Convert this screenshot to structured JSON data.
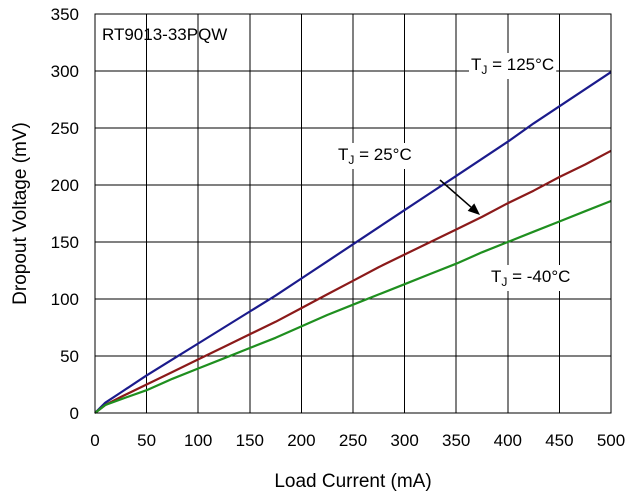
{
  "chart_data": {
    "type": "line",
    "title": "RT9013-33PQW",
    "xlabel": "Load Current (mA)",
    "ylabel": "Dropout Voltage (mV)",
    "xlim": [
      0,
      500
    ],
    "ylim": [
      0,
      350
    ],
    "xticks": [
      "0",
      "50",
      "100",
      "150",
      "200",
      "250",
      "300",
      "350",
      "400",
      "450",
      "500"
    ],
    "yticks": [
      "0",
      "50",
      "100",
      "150",
      "200",
      "250",
      "300",
      "350"
    ],
    "grid": true,
    "series": [
      {
        "name": "TJ = 125°C",
        "color": "#1b1b8c",
        "x": [
          0,
          10,
          25,
          50,
          75,
          100,
          125,
          150,
          175,
          200,
          225,
          250,
          275,
          300,
          325,
          350,
          375,
          400,
          425,
          450,
          475,
          500
        ],
        "y": [
          0,
          9,
          18,
          33,
          47,
          61,
          75,
          89,
          103,
          118,
          133,
          148,
          163,
          178,
          193,
          208,
          223,
          238,
          254,
          269,
          284,
          299
        ]
      },
      {
        "name": "TJ = 25°C",
        "color": "#8b1a1a",
        "x": [
          0,
          10,
          25,
          50,
          75,
          100,
          125,
          150,
          175,
          200,
          225,
          250,
          275,
          300,
          325,
          350,
          375,
          400,
          425,
          450,
          475,
          500
        ],
        "y": [
          0,
          7,
          14,
          25,
          36,
          47,
          58,
          69,
          80,
          92,
          104,
          116,
          128,
          139,
          150,
          161,
          172,
          184,
          195,
          207,
          218,
          230
        ]
      },
      {
        "name": "TJ = -40°C",
        "color": "#1f8f1f",
        "x": [
          0,
          10,
          25,
          50,
          75,
          100,
          125,
          150,
          175,
          200,
          225,
          250,
          275,
          300,
          325,
          350,
          375,
          400,
          425,
          450,
          475,
          500
        ],
        "y": [
          0,
          7,
          12,
          20,
          30,
          39,
          48,
          57,
          66,
          76,
          86,
          95,
          104,
          113,
          122,
          131,
          141,
          150,
          159,
          168,
          177,
          186
        ]
      }
    ],
    "annotations": [
      {
        "sub_prefix": "T",
        "sub": "J",
        "text": " = 125°C"
      },
      {
        "sub_prefix": "T",
        "sub": "J",
        "text": " = 25°C"
      },
      {
        "sub_prefix": "T",
        "sub": "J",
        "text": " = -40°C"
      }
    ]
  }
}
